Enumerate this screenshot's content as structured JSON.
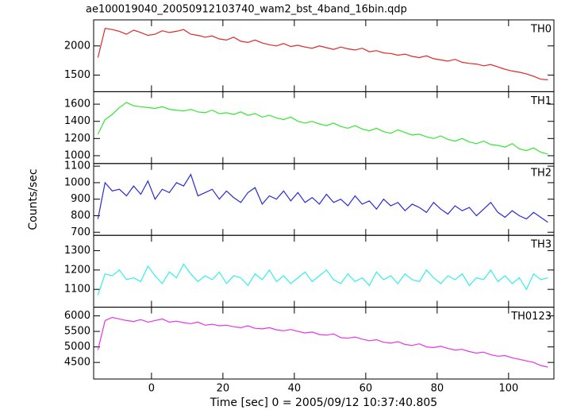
{
  "chart_data": [
    {
      "type": "line",
      "title": "ae100019040_20050912103740_wam2_bst_4band_16bin.qdp",
      "label": "TH0",
      "color": "#e02828",
      "x": [
        -15,
        -13,
        -11,
        -9,
        -7,
        -5,
        -3,
        -1,
        1,
        3,
        5,
        7,
        9,
        11,
        13,
        15,
        17,
        19,
        21,
        23,
        25,
        27,
        29,
        31,
        33,
        35,
        37,
        39,
        41,
        43,
        45,
        47,
        49,
        51,
        53,
        55,
        57,
        59,
        61,
        63,
        65,
        67,
        69,
        71,
        73,
        75,
        77,
        79,
        81,
        83,
        85,
        87,
        89,
        91,
        93,
        95,
        97,
        99,
        101,
        103,
        105,
        107,
        109,
        111
      ],
      "values": [
        1800,
        2300,
        2280,
        2250,
        2200,
        2270,
        2230,
        2180,
        2200,
        2260,
        2230,
        2250,
        2280,
        2200,
        2180,
        2150,
        2170,
        2120,
        2100,
        2150,
        2080,
        2060,
        2100,
        2050,
        2020,
        2000,
        2040,
        1990,
        2010,
        1980,
        1960,
        2000,
        1970,
        1940,
        1980,
        1950,
        1930,
        1960,
        1900,
        1920,
        1880,
        1870,
        1840,
        1860,
        1820,
        1800,
        1830,
        1780,
        1760,
        1740,
        1770,
        1720,
        1700,
        1690,
        1660,
        1680,
        1640,
        1600,
        1570,
        1550,
        1520,
        1480,
        1430,
        1420
      ],
      "xlim": [
        -16.2,
        112.7
      ],
      "xticks": [
        0,
        20,
        40,
        60,
        80,
        100
      ],
      "ylim": [
        1216,
        2446
      ],
      "yticks": [
        1500,
        2000
      ]
    },
    {
      "type": "line",
      "label": "TH1",
      "color": "#33e633",
      "x": [
        -15,
        -13,
        -11,
        -9,
        -7,
        -5,
        -3,
        -1,
        1,
        3,
        5,
        7,
        9,
        11,
        13,
        15,
        17,
        19,
        21,
        23,
        25,
        27,
        29,
        31,
        33,
        35,
        37,
        39,
        41,
        43,
        45,
        47,
        49,
        51,
        53,
        55,
        57,
        59,
        61,
        63,
        65,
        67,
        69,
        71,
        73,
        75,
        77,
        79,
        81,
        83,
        85,
        87,
        89,
        91,
        93,
        95,
        97,
        99,
        101,
        103,
        105,
        107,
        109,
        111
      ],
      "values": [
        1250,
        1420,
        1480,
        1560,
        1620,
        1580,
        1570,
        1560,
        1550,
        1570,
        1540,
        1530,
        1520,
        1540,
        1510,
        1500,
        1530,
        1490,
        1500,
        1480,
        1510,
        1470,
        1490,
        1450,
        1470,
        1440,
        1420,
        1450,
        1400,
        1380,
        1400,
        1370,
        1350,
        1380,
        1340,
        1320,
        1350,
        1310,
        1290,
        1320,
        1280,
        1260,
        1300,
        1270,
        1240,
        1250,
        1220,
        1200,
        1230,
        1190,
        1170,
        1200,
        1160,
        1140,
        1170,
        1130,
        1120,
        1100,
        1140,
        1080,
        1060,
        1090,
        1040,
        1020
      ],
      "xlim": [
        -16.2,
        112.7
      ],
      "xticks": [
        0,
        20,
        40,
        60,
        80,
        100
      ],
      "ylim": [
        909,
        1745
      ],
      "yticks": [
        1000,
        1200,
        1400,
        1600
      ]
    },
    {
      "type": "line",
      "label": "TH2",
      "y_label": "Counts/sec",
      "color": "#2b2bd6",
      "x": [
        -15,
        -13,
        -11,
        -9,
        -7,
        -5,
        -3,
        -1,
        1,
        3,
        5,
        7,
        9,
        11,
        13,
        15,
        17,
        19,
        21,
        23,
        25,
        27,
        29,
        31,
        33,
        35,
        37,
        39,
        41,
        43,
        45,
        47,
        49,
        51,
        53,
        55,
        57,
        59,
        61,
        63,
        65,
        67,
        69,
        71,
        73,
        75,
        77,
        79,
        81,
        83,
        85,
        87,
        89,
        91,
        93,
        95,
        97,
        99,
        101,
        103,
        105,
        107,
        109,
        111
      ],
      "values": [
        780,
        1000,
        950,
        960,
        920,
        980,
        930,
        1010,
        900,
        960,
        940,
        1000,
        980,
        1050,
        920,
        940,
        960,
        900,
        950,
        910,
        880,
        940,
        970,
        870,
        920,
        900,
        950,
        890,
        940,
        880,
        910,
        870,
        930,
        880,
        900,
        860,
        920,
        870,
        890,
        840,
        900,
        860,
        880,
        830,
        870,
        850,
        820,
        880,
        840,
        810,
        860,
        830,
        850,
        800,
        840,
        880,
        820,
        790,
        830,
        800,
        780,
        820,
        790,
        760
      ],
      "xlim": [
        -16.2,
        112.7
      ],
      "xticks": [
        0,
        20,
        40,
        60,
        80,
        100
      ],
      "ylim": [
        681,
        1116
      ],
      "yticks": [
        700,
        800,
        900,
        1000,
        1100
      ]
    },
    {
      "type": "line",
      "label": "TH3",
      "color": "#33eeee",
      "x": [
        -15,
        -13,
        -11,
        -9,
        -7,
        -5,
        -3,
        -1,
        1,
        3,
        5,
        7,
        9,
        11,
        13,
        15,
        17,
        19,
        21,
        23,
        25,
        27,
        29,
        31,
        33,
        35,
        37,
        39,
        41,
        43,
        45,
        47,
        49,
        51,
        53,
        55,
        57,
        59,
        61,
        63,
        65,
        67,
        69,
        71,
        73,
        75,
        77,
        79,
        81,
        83,
        85,
        87,
        89,
        91,
        93,
        95,
        97,
        99,
        101,
        103,
        105,
        107,
        109,
        111
      ],
      "values": [
        1070,
        1180,
        1170,
        1200,
        1150,
        1160,
        1140,
        1220,
        1170,
        1130,
        1190,
        1160,
        1230,
        1180,
        1140,
        1170,
        1150,
        1190,
        1130,
        1170,
        1160,
        1120,
        1180,
        1150,
        1200,
        1140,
        1170,
        1130,
        1160,
        1190,
        1140,
        1170,
        1200,
        1150,
        1130,
        1180,
        1140,
        1160,
        1120,
        1190,
        1150,
        1170,
        1130,
        1180,
        1150,
        1140,
        1200,
        1160,
        1130,
        1170,
        1150,
        1180,
        1120,
        1160,
        1150,
        1200,
        1140,
        1170,
        1130,
        1160,
        1100,
        1180,
        1150,
        1160
      ],
      "xlim": [
        -16.2,
        112.7
      ],
      "xticks": [
        0,
        20,
        40,
        60,
        80,
        100
      ],
      "ylim": [
        1008,
        1379
      ],
      "yticks": [
        1100,
        1200,
        1300
      ]
    },
    {
      "type": "line",
      "label": "TH0123",
      "x_label": "Time [sec] 0 = 2005/09/12 10:37:40.805",
      "color": "#e633e6",
      "x": [
        -15,
        -13,
        -11,
        -9,
        -7,
        -5,
        -3,
        -1,
        1,
        3,
        5,
        7,
        9,
        11,
        13,
        15,
        17,
        19,
        21,
        23,
        25,
        27,
        29,
        31,
        33,
        35,
        37,
        39,
        41,
        43,
        45,
        47,
        49,
        51,
        53,
        55,
        57,
        59,
        61,
        63,
        65,
        67,
        69,
        71,
        73,
        75,
        77,
        79,
        81,
        83,
        85,
        87,
        89,
        91,
        93,
        95,
        97,
        99,
        101,
        103,
        105,
        107,
        109,
        111
      ],
      "values": [
        4900,
        5850,
        5950,
        5900,
        5850,
        5820,
        5880,
        5800,
        5850,
        5900,
        5800,
        5830,
        5780,
        5750,
        5800,
        5700,
        5730,
        5680,
        5700,
        5650,
        5620,
        5680,
        5600,
        5580,
        5620,
        5550,
        5520,
        5560,
        5500,
        5450,
        5480,
        5400,
        5380,
        5420,
        5300,
        5280,
        5320,
        5250,
        5200,
        5230,
        5150,
        5120,
        5170,
        5080,
        5050,
        5100,
        5000,
        4980,
        5020,
        4950,
        4900,
        4920,
        4850,
        4800,
        4830,
        4750,
        4700,
        4720,
        4650,
        4600,
        4550,
        4500,
        4400,
        4350
      ],
      "xlim": [
        -16.2,
        112.7
      ],
      "xticks": [
        0,
        20,
        40,
        60,
        80,
        100
      ],
      "ylim": [
        3966,
        6280
      ],
      "yticks": [
        4500,
        5000,
        5500,
        6000
      ]
    }
  ]
}
